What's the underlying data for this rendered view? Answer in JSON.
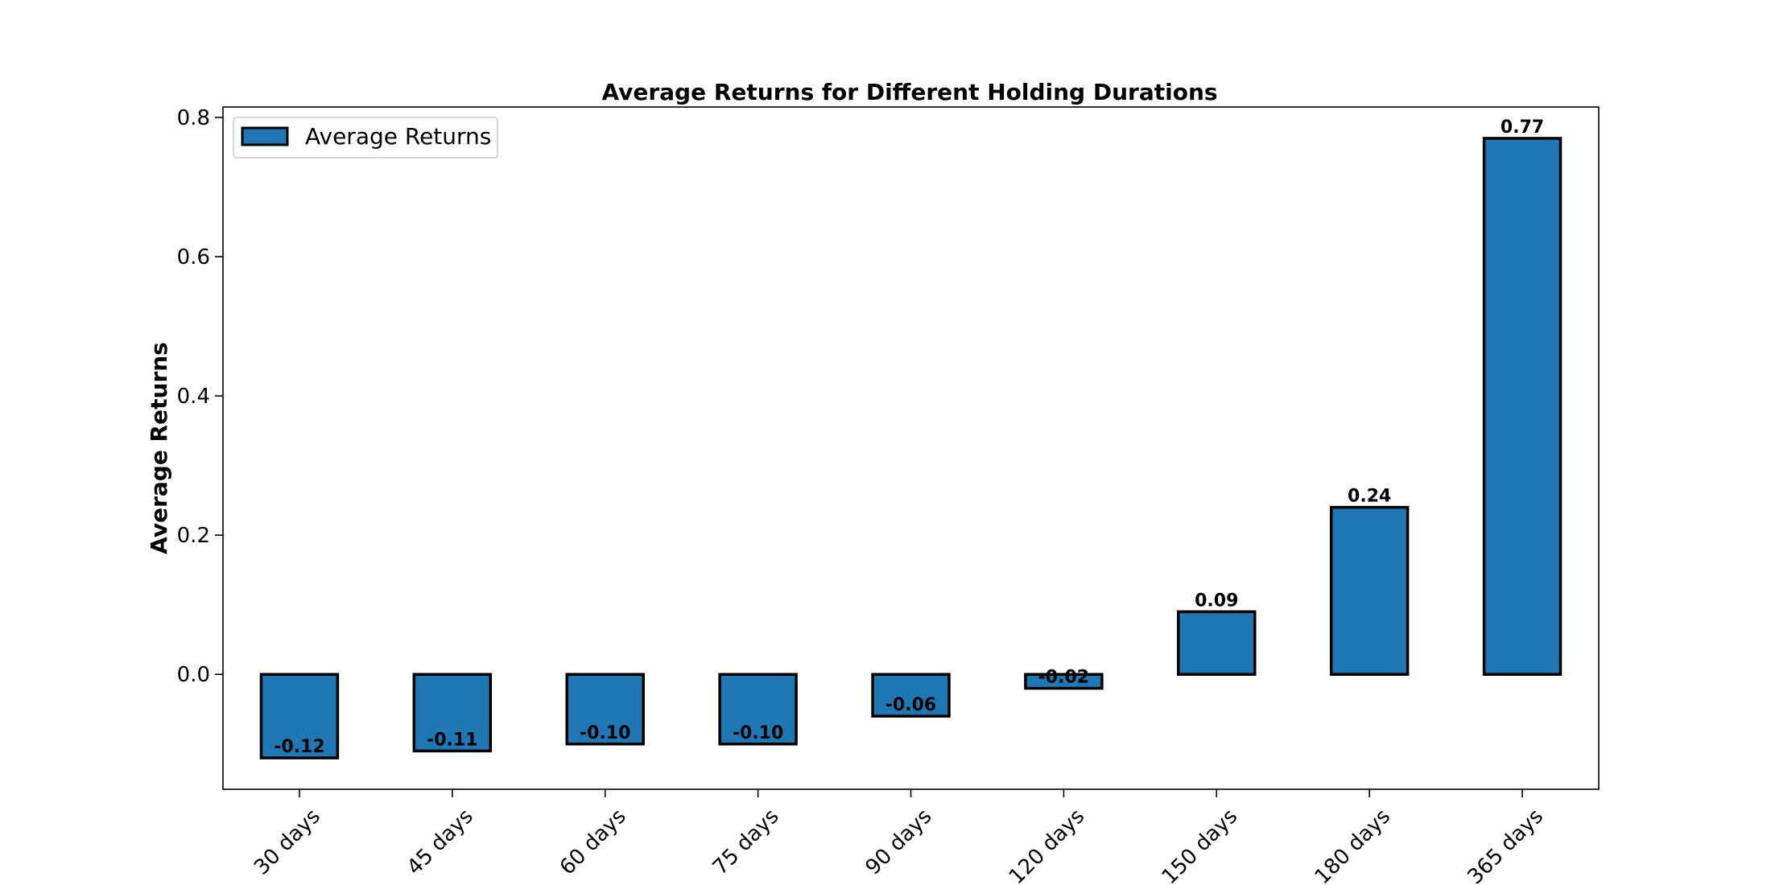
{
  "chart_data": {
    "type": "bar",
    "title": "Average Returns for Different Holding Durations",
    "xlabel": "",
    "ylabel": "Average Returns",
    "categories": [
      "30 days",
      "45 days",
      "60 days",
      "75 days",
      "90 days",
      "120 days",
      "150 days",
      "180 days",
      "365 days"
    ],
    "series": [
      {
        "name": "Average Returns",
        "values": [
          -0.12,
          -0.11,
          -0.1,
          -0.1,
          -0.06,
          -0.02,
          0.09,
          0.24,
          0.77
        ],
        "labels": [
          "-0.12",
          "-0.11",
          "-0.10",
          "-0.10",
          "-0.06",
          "-0.02",
          "0.09",
          "0.24",
          "0.77"
        ],
        "color": "#1f77b4"
      }
    ],
    "ylim": [
      -0.165,
      0.815
    ],
    "yticks": [
      0.0,
      0.2,
      0.4,
      0.6,
      0.8
    ],
    "ytick_labels": [
      "0.0",
      "0.2",
      "0.4",
      "0.6",
      "0.8"
    ],
    "grid": false,
    "legend": "top-left"
  }
}
